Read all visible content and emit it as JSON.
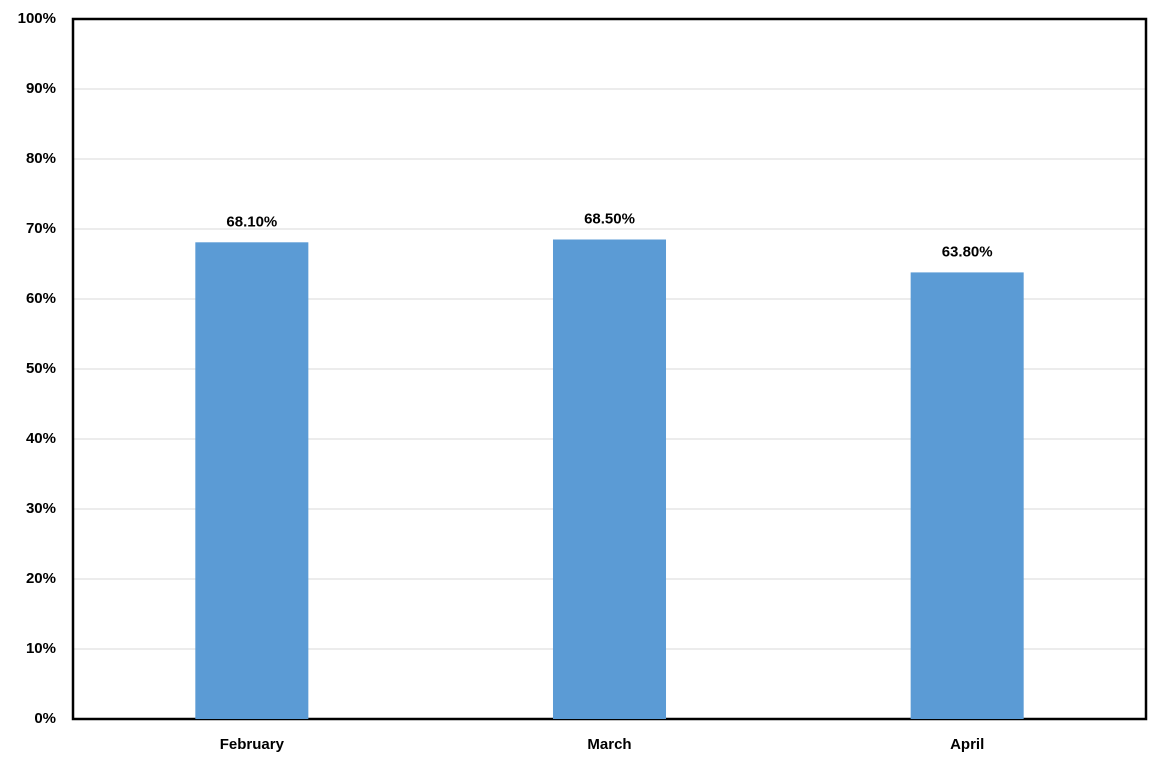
{
  "chart_data": {
    "type": "bar",
    "categories": [
      "February",
      "March",
      "April"
    ],
    "values": [
      68.1,
      68.5,
      63.8
    ],
    "value_labels": [
      "68.10%",
      "68.50%",
      "63.80%"
    ],
    "color": "#5b9bd5",
    "ylim": [
      0,
      100
    ],
    "yticks": [
      {
        "value": 0,
        "label": "0%"
      },
      {
        "value": 10,
        "label": "10%"
      },
      {
        "value": 20,
        "label": "20%"
      },
      {
        "value": 30,
        "label": "30%"
      },
      {
        "value": 40,
        "label": "40%"
      },
      {
        "value": 50,
        "label": "50%"
      },
      {
        "value": 60,
        "label": "60%"
      },
      {
        "value": 70,
        "label": "70%"
      },
      {
        "value": 80,
        "label": "80%"
      },
      {
        "value": 90,
        "label": "90%"
      },
      {
        "value": 100,
        "label": "100%"
      }
    ],
    "grid": true
  }
}
